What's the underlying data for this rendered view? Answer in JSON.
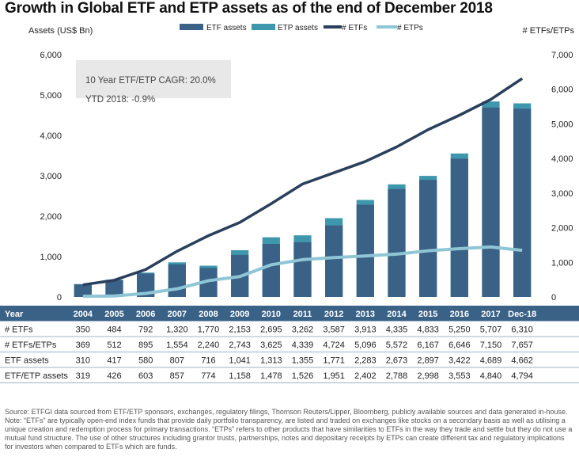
{
  "title": "Growth in Global ETF and ETP assets as of the end of December 2018",
  "chart_data": {
    "type": "bar",
    "title": "Growth in Global ETF and ETP assets as of the end of December 2018",
    "ylabel": "Assets (US$ Bn)",
    "y2label": "# ETFs/ETPs",
    "ylim": [
      0,
      6000
    ],
    "y2lim": [
      0,
      7000
    ],
    "yticks": [
      "0",
      "1,000",
      "2,000",
      "3,000",
      "4,000",
      "5,000",
      "6,000"
    ],
    "y2ticks": [
      "0",
      "1,000",
      "2,000",
      "3,000",
      "4,000",
      "5,000",
      "6,000",
      "7,000"
    ],
    "categories": [
      "2004",
      "2005",
      "2006",
      "2007",
      "2008",
      "2009",
      "2010",
      "2011",
      "2012",
      "2013",
      "2014",
      "2015",
      "2016",
      "2017",
      "Dec-18"
    ],
    "legend_position": "top",
    "grid": false,
    "series": [
      {
        "name": "ETF assets",
        "type": "bar",
        "axis": "left",
        "color": "#3a6186",
        "values": [
          310,
          417,
          580,
          807,
          716,
          1041,
          1313,
          1355,
          1771,
          2283,
          2673,
          2897,
          3422,
          4689,
          4662
        ]
      },
      {
        "name": "ETP assets",
        "type": "bar",
        "axis": "left",
        "color": "#3f97ad",
        "values": [
          319,
          426,
          603,
          857,
          774,
          1158,
          1478,
          1526,
          1951,
          2402,
          2788,
          2998,
          3553,
          4840,
          4794
        ]
      },
      {
        "name": "# ETFs",
        "type": "line",
        "axis": "right",
        "color": "#2a3f5c",
        "values": [
          350,
          484,
          792,
          1320,
          1770,
          2153,
          2695,
          3262,
          3587,
          3913,
          4335,
          4833,
          5250,
          5707,
          6310
        ]
      },
      {
        "name": "# ETPs",
        "type": "line",
        "axis": "right",
        "color": "#8fc6d6",
        "values": [
          19,
          28,
          103,
          234,
          470,
          590,
          930,
          1077,
          1137,
          1183,
          1237,
          1334,
          1396,
          1443,
          1347
        ]
      }
    ],
    "annotation": {
      "line1": "10 Year ETF/ETP CAGR: 20.0%",
      "line2": "YTD 2018: -0.9%"
    },
    "table": {
      "header_label": "Year",
      "header": [
        "2004",
        "2005",
        "2006",
        "2007",
        "2008",
        "2009",
        "2010",
        "2011",
        "2012",
        "2013",
        "2014",
        "2015",
        "2016",
        "2017",
        "Dec-18"
      ],
      "rows": [
        {
          "label": "# ETFs",
          "values": [
            "350",
            "484",
            "792",
            "1,320",
            "1,770",
            "2,153",
            "2,695",
            "3,262",
            "3,587",
            "3,913",
            "4,335",
            "4,833",
            "5,250",
            "5,707",
            "6,310"
          ]
        },
        {
          "label": "# ETFs/ETPs",
          "values": [
            "369",
            "512",
            "895",
            "1,554",
            "2,240",
            "2,743",
            "3,625",
            "4,339",
            "4,724",
            "5,096",
            "5,572",
            "6,167",
            "6,646",
            "7,150",
            "7,657"
          ]
        },
        {
          "label": "ETF assets",
          "values": [
            "310",
            "417",
            "580",
            "807",
            "716",
            "1,041",
            "1,313",
            "1,355",
            "1,771",
            "2,283",
            "2,673",
            "2,897",
            "3,422",
            "4,689",
            "4,662"
          ]
        },
        {
          "label": "ETF/ETP assets",
          "values": [
            "319",
            "426",
            "603",
            "857",
            "774",
            "1,158",
            "1,478",
            "1,526",
            "1,951",
            "2,402",
            "2,788",
            "2,998",
            "3,553",
            "4,840",
            "4,794"
          ]
        }
      ]
    }
  },
  "source": {
    "line1": "Source: ETFGI data sourced from ETF/ETP sponsors, exchanges, regulatory filings, Thomson Reuters/Lipper, Bloomberg, publicly available sources and data generated in-house.",
    "line2": "Note: “ETFs” are typically open-end index funds that provide daily portfolio transparency, are listed and traded on exchanges like stocks on a secondary basis as well as utilising a unique creation and redemption process for primary transactions. “ETPs” refers to other products that have similarities to ETFs in the way they trade and settle but they do not use a mutual fund structure. The use of other structures including grantor trusts, partnerships, notes and depositary receipts by ETPs can create different tax and regulatory implications for investors when compared to ETFs which are funds."
  }
}
